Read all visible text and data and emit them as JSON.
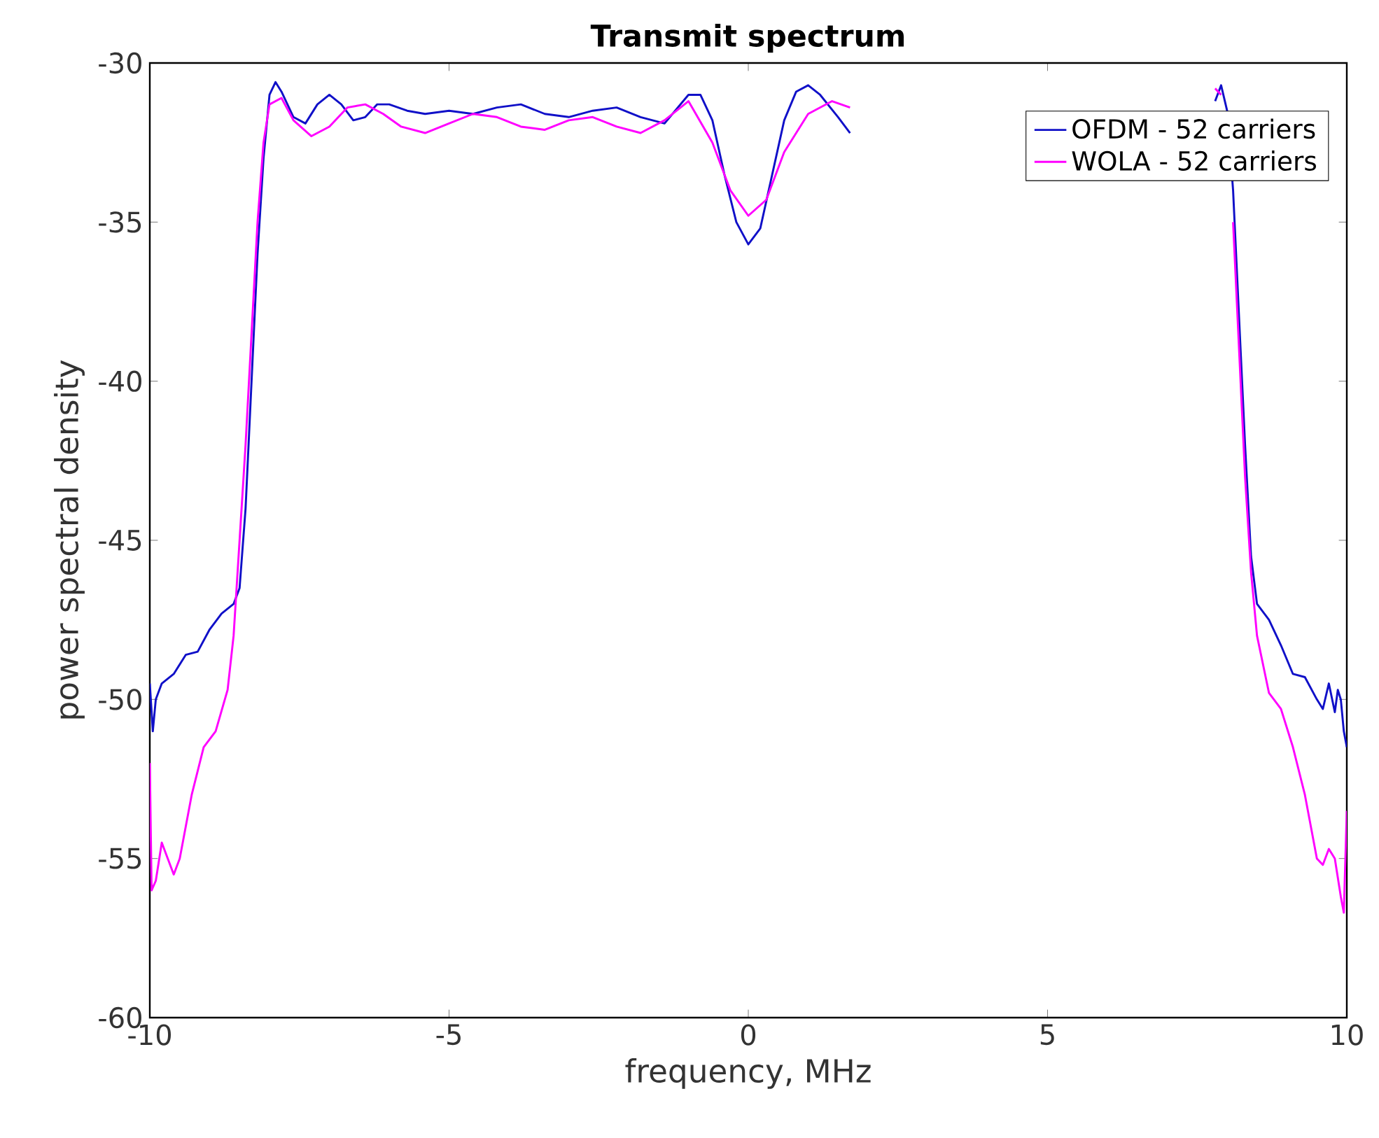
{
  "chart_data": {
    "type": "line",
    "title": "Transmit spectrum",
    "xlabel": "frequency, MHz",
    "ylabel": "power spectral density",
    "xlim": [
      -10,
      10
    ],
    "ylim": [
      -60,
      -30
    ],
    "xticks": [
      -10,
      -5,
      0,
      5,
      10
    ],
    "yticks": [
      -60,
      -55,
      -50,
      -45,
      -40,
      -35,
      -30
    ],
    "legend": "top right",
    "grid": false,
    "marker": "none",
    "line_style": "solid",
    "series": [
      {
        "name": "OFDM - 52 carriers",
        "color": "#1010c8",
        "x": [
          -10,
          -9.95,
          -9.9,
          -9.8,
          -9.6,
          -9.4,
          -9.2,
          -9.0,
          -8.8,
          -8.6,
          -8.5,
          -8.4,
          -8.3,
          -8.2,
          -8.1,
          -8.0,
          -7.9,
          -7.8,
          -7.6,
          -7.4,
          -7.2,
          -7.0,
          -6.8,
          -6.6,
          -6.4,
          -6.2,
          -6.0,
          -5.7,
          -5.4,
          -5.0,
          -4.6,
          -4.2,
          -3.8,
          -3.4,
          -3.0,
          -2.6,
          -2.2,
          -1.8,
          -1.4,
          -1.0,
          -0.8,
          -0.6,
          -0.4,
          -0.2,
          0,
          0.2,
          0.4,
          0.6,
          0.8,
          1.0,
          1.2,
          1.5,
          1.7,
          2.0,
          7.6,
          7.8,
          7.9,
          8.0,
          8.1,
          8.2,
          8.3,
          8.4,
          8.5,
          8.7,
          8.9,
          9.1,
          9.3,
          9.5,
          9.6,
          9.7,
          9.8,
          9.85,
          9.9,
          9.95,
          10
        ],
        "values": [
          -49.5,
          -51,
          -50,
          -49.5,
          -49.2,
          -48.6,
          -48.5,
          -47.8,
          -47.3,
          -47,
          -46.5,
          -44,
          -40,
          -36,
          -33,
          -31,
          -30.6,
          -30.9,
          -31.7,
          -31.9,
          -31.3,
          -31.0,
          -31.3,
          -31.8,
          -31.7,
          -31.3,
          -31.3,
          -31.5,
          -31.6,
          -31.5,
          -31.6,
          -31.4,
          -31.3,
          -31.6,
          -31.7,
          -31.5,
          -31.4,
          -31.7,
          -31.9,
          -31.0,
          -31.0,
          -31.8,
          -33.5,
          -35,
          -35.7,
          -35.2,
          -33.5,
          -31.8,
          -30.9,
          -30.7,
          -31.0,
          -31.7,
          -32.2,
          null,
          null,
          -31.2,
          -30.7,
          -31.5,
          -34,
          -38,
          -42,
          -45.5,
          -47,
          -47.5,
          -48.3,
          -49.2,
          -49.3,
          -50,
          -50.3,
          -49.5,
          -50.4,
          -49.7,
          -50,
          -51,
          -51.5
        ]
      },
      {
        "name": "WOLA - 52 carriers",
        "color": "#ff00ff",
        "x": [
          -10,
          -9.97,
          -9.9,
          -9.8,
          -9.7,
          -9.6,
          -9.5,
          -9.3,
          -9.1,
          -8.9,
          -8.7,
          -8.6,
          -8.5,
          -8.4,
          -8.3,
          -8.2,
          -8.1,
          -8.0,
          -7.8,
          -7.6,
          -7.3,
          -7.0,
          -6.7,
          -6.4,
          -6.1,
          -5.8,
          -5.4,
          -5.0,
          -4.6,
          -4.2,
          -3.8,
          -3.4,
          -3.0,
          -2.6,
          -2.2,
          -1.8,
          -1.4,
          -1.0,
          -0.6,
          -0.3,
          0,
          0.3,
          0.6,
          1.0,
          1.4,
          1.7,
          2.0,
          7.6,
          7.8,
          7.9,
          8.0,
          8.1,
          8.2,
          8.3,
          8.4,
          8.5,
          8.7,
          8.9,
          9.1,
          9.3,
          9.5,
          9.6,
          9.7,
          9.8,
          9.9,
          9.95,
          10
        ],
        "values": [
          -52,
          -56,
          -55.7,
          -54.5,
          -55,
          -55.5,
          -55,
          -53,
          -51.5,
          -51,
          -49.7,
          -48,
          -45,
          -42,
          -38.5,
          -35,
          -32.5,
          -31.3,
          -31.1,
          -31.8,
          -32.3,
          -32.0,
          -31.4,
          -31.3,
          -31.6,
          -32.0,
          -32.2,
          -31.9,
          -31.6,
          -31.7,
          -32.0,
          -32.1,
          -31.8,
          -31.7,
          -32.0,
          -32.2,
          -31.8,
          -31.2,
          -32.5,
          -34,
          -34.8,
          -34.3,
          -32.8,
          -31.6,
          -31.2,
          -31.4,
          null,
          null,
          -30.8,
          -31,
          null,
          -35,
          -39,
          -43,
          -46,
          -48,
          -49.8,
          -50.3,
          -51.5,
          -53,
          -55,
          -55.2,
          -54.7,
          -55,
          -56.2,
          -56.7,
          -53.5
        ]
      }
    ]
  }
}
